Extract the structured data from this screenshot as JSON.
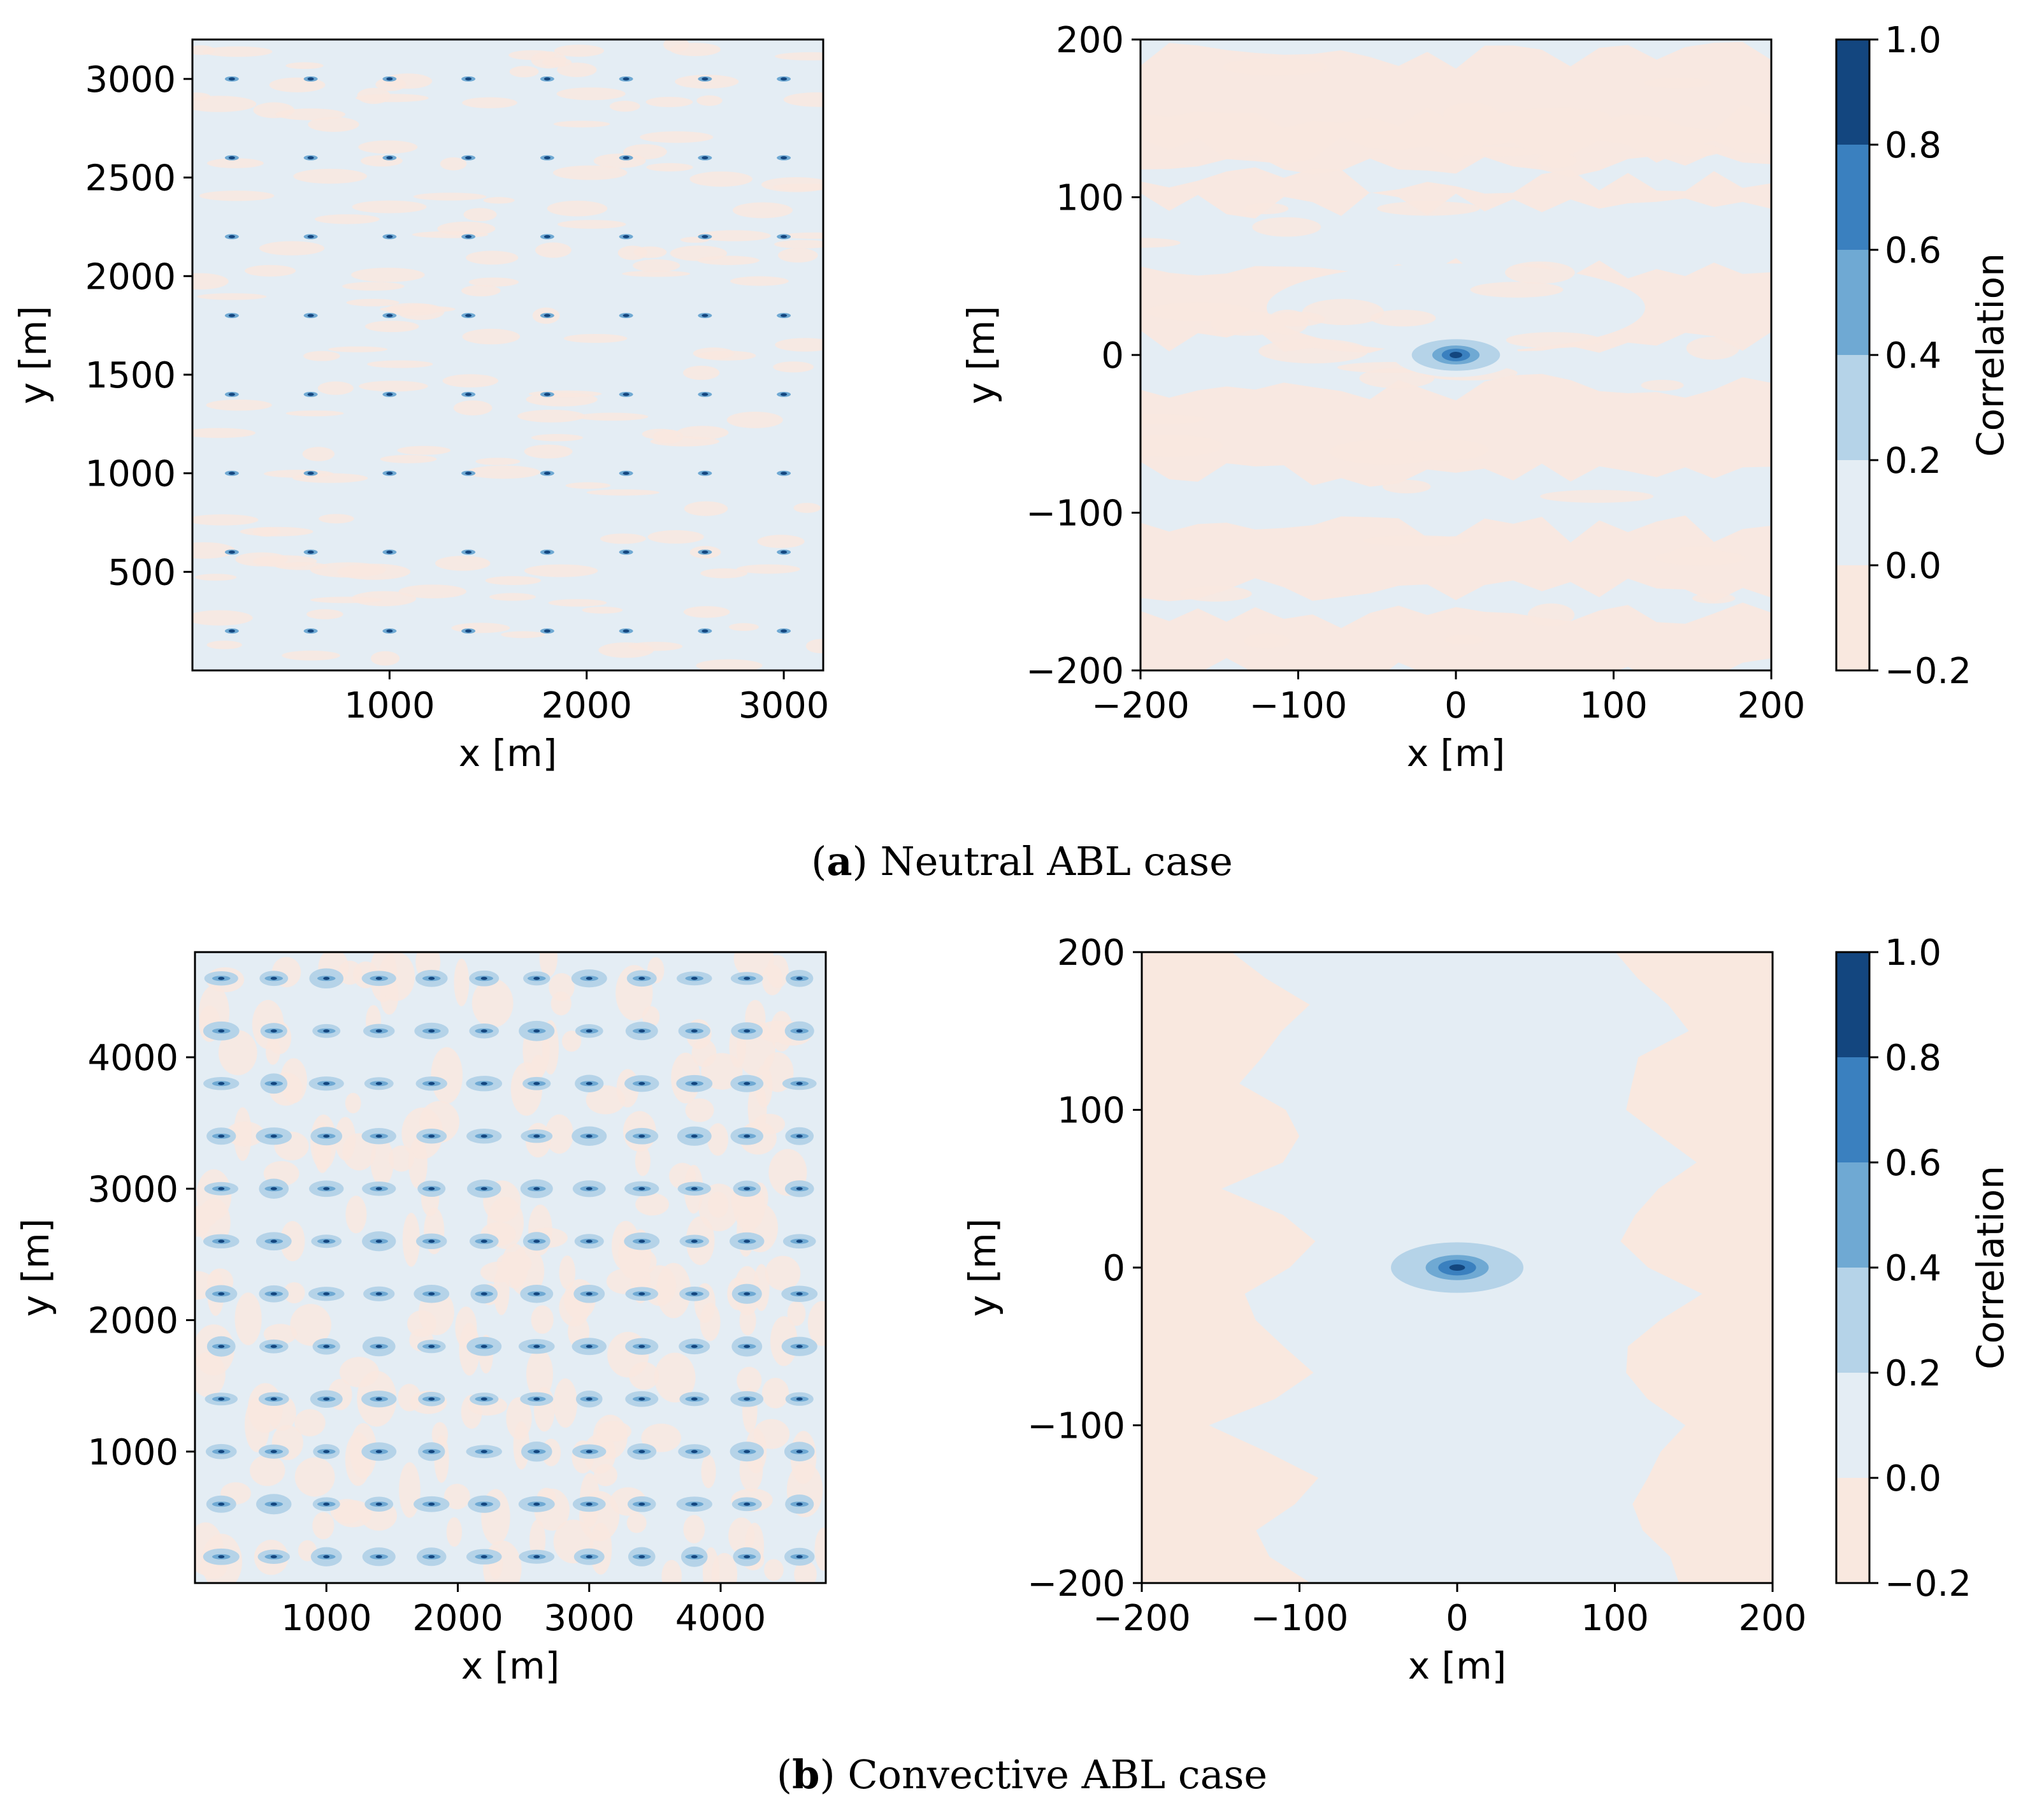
{
  "colors": {
    "neg": "#f9e8df",
    "bin_0_02": "#e4edf4",
    "bin_02_04": "#b5d3e8",
    "bin_04_06": "#6fa9d3",
    "bin_06_08": "#3a80bf",
    "bin_08_10": "#13467f",
    "axis": "#000000"
  },
  "captions": [
    {
      "letter": "a",
      "text": "Neutral ABL case"
    },
    {
      "letter": "b",
      "text": "Convective ABL case"
    }
  ],
  "chart_data": [
    {
      "id": "neutral-domain",
      "type": "heatmap",
      "title": "",
      "xlabel": "x [m]",
      "ylabel": "y [m]",
      "xlim": [
        0,
        3200
      ],
      "ylim": [
        0,
        3200
      ],
      "xticks": [
        1000,
        2000,
        3000
      ],
      "yticks": [
        500,
        1000,
        1500,
        2000,
        2500,
        3000
      ],
      "turbine_grid": {
        "x": [
          200,
          600,
          1000,
          1400,
          1800,
          2200,
          2600,
          3000
        ],
        "y": [
          200,
          600,
          1000,
          1400,
          1800,
          2200,
          2600,
          3000
        ]
      },
      "peak_correlation": 1.0
    },
    {
      "id": "neutral-zoom",
      "type": "heatmap",
      "xlabel": "x [m]",
      "ylabel": "y [m]",
      "xlim": [
        -200,
        200
      ],
      "ylim": [
        -200,
        200
      ],
      "xticks": [
        -200,
        -100,
        0,
        100,
        200
      ],
      "yticks": [
        -200,
        -100,
        0,
        100,
        200
      ],
      "center": [
        0,
        0
      ],
      "contour_halfwidths_m": {
        "0.2": [
          28,
          10
        ],
        "0.4": [
          15,
          6
        ],
        "0.6": [
          9,
          4
        ],
        "0.8": [
          4,
          2
        ]
      },
      "colorbar": {
        "label": "Correlation",
        "levels": [
          -0.2,
          0.0,
          0.2,
          0.4,
          0.6,
          0.8,
          1.0
        ]
      }
    },
    {
      "id": "convective-domain",
      "type": "heatmap",
      "xlabel": "x [m]",
      "ylabel": "y [m]",
      "xlim": [
        0,
        4800
      ],
      "ylim": [
        0,
        4800
      ],
      "xticks": [
        1000,
        2000,
        3000,
        4000
      ],
      "yticks": [
        1000,
        2000,
        3000,
        4000
      ],
      "turbine_grid": {
        "x": [
          200,
          600,
          1000,
          1400,
          1800,
          2200,
          2600,
          3000,
          3400,
          3800,
          4200,
          4600
        ],
        "y": [
          200,
          600,
          1000,
          1400,
          1800,
          2200,
          2600,
          3000,
          3400,
          3800,
          4200,
          4600
        ]
      },
      "peak_correlation": 1.0
    },
    {
      "id": "convective-zoom",
      "type": "heatmap",
      "xlabel": "x [m]",
      "ylabel": "y [m]",
      "xlim": [
        -200,
        200
      ],
      "ylim": [
        -200,
        200
      ],
      "xticks": [
        -200,
        -100,
        0,
        100,
        200
      ],
      "yticks": [
        -200,
        -100,
        0,
        100,
        200
      ],
      "center": [
        0,
        0
      ],
      "contour_halfwidths_m": {
        "0.2": [
          42,
          16
        ],
        "0.4": [
          20,
          8
        ],
        "0.6": [
          12,
          5
        ],
        "0.8": [
          5,
          2
        ]
      },
      "colorbar": {
        "label": "Correlation",
        "levels": [
          -0.2,
          0.0,
          0.2,
          0.4,
          0.6,
          0.8,
          1.0
        ]
      }
    }
  ]
}
